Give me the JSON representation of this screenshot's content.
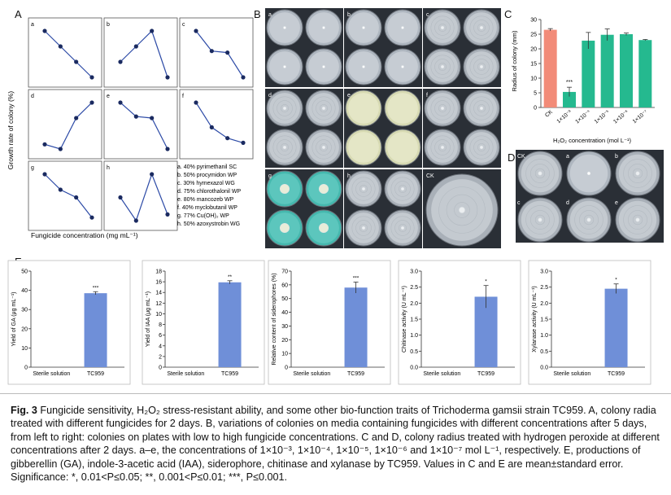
{
  "panels": {
    "A": "A",
    "B": "B",
    "C": "C",
    "D": "D",
    "E": "E"
  },
  "panelA": {
    "ylabel": "Growth rate of colony (%)",
    "xlabel": "Fungicide concentration (mg mL⁻¹)",
    "subs": [
      "a",
      "b",
      "c",
      "d",
      "e",
      "f",
      "g",
      "h"
    ],
    "legend": [
      "a. 40% pyrimethanil SC",
      "b. 50% procymidon WP",
      "c. 30% hymexazol WG",
      "d. 75% chlorothalonil WP",
      "e. 80% mancozeb WP",
      "f. 40% myclobutanil WP",
      "g. 77% Cu(OH)₂ WP",
      "h. 50% azoxystrobin WG"
    ]
  },
  "panelB": {
    "labels": [
      "a",
      "b",
      "c",
      "d",
      "e",
      "f",
      "g",
      "h",
      "CK"
    ]
  },
  "panelC": {
    "ylabel": "Radius of colony (mm)",
    "xlabel": "H₂O₂ concentration (mol L⁻¹)",
    "categories": [
      "CK",
      "1×10⁻³",
      "1×10⁻⁴",
      "1×10⁻⁵",
      "1×10⁻⁶",
      "1×10⁻⁷"
    ],
    "yticks": [
      "0",
      "5",
      "10",
      "15",
      "20",
      "25",
      "30"
    ],
    "sig": "***"
  },
  "panelD": {
    "labels": [
      "CK",
      "a",
      "b",
      "c",
      "d",
      "e"
    ]
  },
  "panelE": {
    "categories": [
      "Sterile solution",
      "TC959"
    ],
    "charts": [
      {
        "ylabel": "Yield of GA (μg mL⁻¹)",
        "yticks": [
          "0",
          "10",
          "20",
          "30",
          "40",
          "50"
        ],
        "sig": "***"
      },
      {
        "ylabel": "Yield of IAA (μg mL⁻¹)",
        "yticks": [
          "0",
          "2",
          "4",
          "6",
          "8",
          "10",
          "12",
          "14",
          "16",
          "18"
        ],
        "sig": "**"
      },
      {
        "ylabel": "Relative content of siderophores (%)",
        "yticks": [
          "0",
          "10",
          "20",
          "30",
          "40",
          "50",
          "60",
          "70"
        ],
        "sig": "***"
      },
      {
        "ylabel": "Chitinase activity (U mL⁻¹)",
        "yticks": [
          "0.0",
          "0.5",
          "1.0",
          "1.5",
          "2.0",
          "2.5",
          "3.0"
        ],
        "sig": "*"
      },
      {
        "ylabel": "Xylanase activity (U mL⁻¹)",
        "yticks": [
          "0.0",
          "0.5",
          "1.0",
          "1.5",
          "2.0",
          "2.5",
          "3.0"
        ],
        "sig": "*"
      }
    ]
  },
  "caption": {
    "lead": "Fig. 3",
    "text": " Fungicide sensitivity, H₂O₂ stress-resistant ability, and some other bio-function traits of Trichoderma gamsii strain TC959. A, colony radia treated with different fungicides for 2 days. B, variations of colonies on media containing fungicides with different concentrations after 5 days, from left to right: colonies on plates with low to high fungicide concentrations. C and D, colony radius treated with hydrogen peroxide at different concentrations after 2 days. a–e, the concentrations of 1×10⁻³, 1×10⁻⁴, 1×10⁻⁵, 1×10⁻⁶ and 1×10⁻⁷ mol L⁻¹, respectively. E, productions of gibberellin (GA), indole-3-acetic acid (IAA), siderophore, chitinase and xylanase by TC959. Values in C and E are mean±standard error. Significance: *, 0.01<P≤0.05; **, 0.001<P≤0.01; ***, P≤0.001."
  },
  "chart_data": [
    {
      "panel": "A",
      "type": "line",
      "series": [
        {
          "label": "a",
          "values": [
            4,
            3,
            2,
            1
          ]
        },
        {
          "label": "b",
          "values": [
            2,
            3,
            4,
            1
          ]
        },
        {
          "label": "c",
          "values": [
            4,
            2.7,
            2.6,
            1
          ]
        },
        {
          "label": "d",
          "values": [
            1.3,
            1,
            3,
            4
          ]
        },
        {
          "label": "e",
          "values": [
            4,
            3.1,
            3,
            1
          ]
        },
        {
          "label": "f",
          "values": [
            4,
            2.4,
            1.7,
            1.4
          ]
        },
        {
          "label": "g",
          "values": [
            4,
            3,
            2.5,
            1.2
          ]
        },
        {
          "label": "h",
          "values": [
            2.5,
            1,
            4,
            1.4
          ]
        }
      ]
    },
    {
      "panel": "C",
      "type": "bar",
      "categories": [
        "CK",
        "1×10⁻³",
        "1×10⁻⁴",
        "1×10⁻⁵",
        "1×10⁻⁶",
        "1×10⁻⁷"
      ],
      "values": [
        26.5,
        5.3,
        22.8,
        24.8,
        25.0,
        23.0
      ],
      "errors": [
        0.4,
        1.6,
        2.8,
        2.0,
        0.4,
        0.2
      ],
      "colors": [
        "#f28b78",
        "#25b98f",
        "#25b98f",
        "#25b98f",
        "#25b98f",
        "#25b98f"
      ],
      "ylim": [
        0,
        30
      ],
      "ylabel": "Radius of colony (mm)",
      "xlabel": "H₂O₂ concentration (mol L⁻¹)"
    },
    {
      "panel": "E1",
      "type": "bar",
      "categories": [
        "Sterile solution",
        "TC959"
      ],
      "values": [
        0,
        38.5
      ],
      "errors": [
        0,
        0.8
      ],
      "ylim": [
        0,
        50
      ],
      "ylabel": "Yield of GA (μg mL⁻¹)"
    },
    {
      "panel": "E2",
      "type": "bar",
      "categories": [
        "Sterile solution",
        "TC959"
      ],
      "values": [
        0,
        15.9
      ],
      "errors": [
        0,
        0.3
      ],
      "ylim": [
        0,
        18
      ],
      "ylabel": "Yield of IAA (μg mL⁻¹)"
    },
    {
      "panel": "E3",
      "type": "bar",
      "categories": [
        "Sterile solution",
        "TC959"
      ],
      "values": [
        0,
        58
      ],
      "errors": [
        0,
        4
      ],
      "ylim": [
        0,
        70
      ],
      "ylabel": "Relative content of siderophores (%)"
    },
    {
      "panel": "E4",
      "type": "bar",
      "categories": [
        "Sterile solution",
        "TC959"
      ],
      "values": [
        0,
        2.2
      ],
      "errors": [
        0,
        0.35
      ],
      "ylim": [
        0,
        3
      ],
      "ylabel": "Chitinase activity (U mL⁻¹)"
    },
    {
      "panel": "E5",
      "type": "bar",
      "categories": [
        "Sterile solution",
        "TC959"
      ],
      "values": [
        0,
        2.45
      ],
      "errors": [
        0,
        0.15
      ],
      "ylim": [
        0,
        3
      ],
      "ylabel": "Xylanase activity (U mL⁻¹)"
    }
  ],
  "colors": {
    "line": "#2c4aa6",
    "barE": "#6f8fd8",
    "ck": "#f28b78",
    "green": "#25b98f"
  }
}
